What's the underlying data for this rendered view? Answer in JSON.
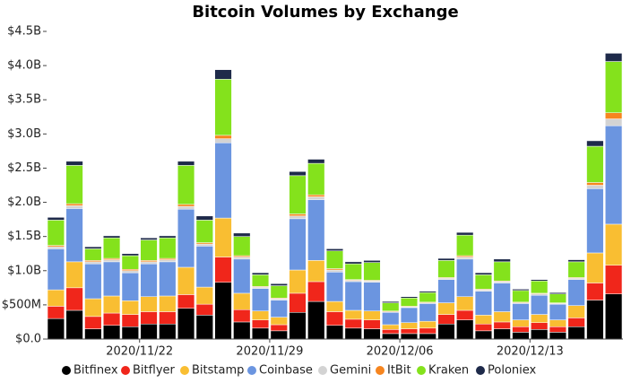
{
  "chart_data": {
    "type": "stacked_bar",
    "title": "Bitcoin Volumes by Exchange",
    "categories": [
      null,
      null,
      null,
      null,
      null,
      "2020/11/22",
      null,
      null,
      null,
      null,
      null,
      null,
      "2020/11/29",
      null,
      null,
      null,
      null,
      null,
      null,
      "2020/12/06",
      null,
      null,
      null,
      null,
      null,
      null,
      "2020/12/13",
      null,
      null,
      null,
      null
    ],
    "ylim": [
      0,
      4.5
    ],
    "yticks": [
      {
        "value": 0,
        "label": "$0.0"
      },
      {
        "value": 0.5,
        "label": "$500M"
      },
      {
        "value": 1,
        "label": "$1.0B"
      },
      {
        "value": 1.5,
        "label": "$1.5B"
      },
      {
        "value": 2,
        "label": "$2.0B"
      },
      {
        "value": 2.5,
        "label": "$2.5B"
      },
      {
        "value": 3,
        "label": "$3.0B"
      },
      {
        "value": 3.5,
        "label": "$3.5B"
      },
      {
        "value": 4,
        "label": "$4.0B"
      },
      {
        "value": 4.5,
        "label": "$4.5B"
      }
    ],
    "legend": "bottom",
    "series": [
      {
        "name": "Bitfinex",
        "color": "#000000",
        "values": [
          0.3,
          0.42,
          0.15,
          0.2,
          0.18,
          0.22,
          0.22,
          0.45,
          0.35,
          0.83,
          0.25,
          0.16,
          0.12,
          0.39,
          0.55,
          0.2,
          0.16,
          0.15,
          0.08,
          0.08,
          0.08,
          0.22,
          0.28,
          0.12,
          0.15,
          0.1,
          0.14,
          0.1,
          0.18,
          0.57,
          0.66
        ]
      },
      {
        "name": "Bitflyer",
        "color": "#f0261b",
        "values": [
          0.18,
          0.33,
          0.18,
          0.18,
          0.18,
          0.18,
          0.18,
          0.2,
          0.16,
          0.37,
          0.18,
          0.12,
          0.09,
          0.28,
          0.29,
          0.2,
          0.13,
          0.13,
          0.06,
          0.07,
          0.08,
          0.14,
          0.14,
          0.1,
          0.1,
          0.08,
          0.1,
          0.08,
          0.13,
          0.25,
          0.42
        ]
      },
      {
        "name": "Bitstamp",
        "color": "#f9be32",
        "values": [
          0.24,
          0.38,
          0.26,
          0.25,
          0.2,
          0.22,
          0.23,
          0.4,
          0.25,
          0.57,
          0.24,
          0.13,
          0.11,
          0.34,
          0.31,
          0.15,
          0.13,
          0.13,
          0.07,
          0.09,
          0.1,
          0.17,
          0.2,
          0.13,
          0.15,
          0.1,
          0.12,
          0.1,
          0.18,
          0.44,
          0.6
        ]
      },
      {
        "name": "Coinbase",
        "color": "#6b95e0",
        "values": [
          0.6,
          0.78,
          0.51,
          0.5,
          0.41,
          0.48,
          0.5,
          0.85,
          0.6,
          1.1,
          0.5,
          0.33,
          0.25,
          0.75,
          0.89,
          0.43,
          0.42,
          0.42,
          0.18,
          0.22,
          0.26,
          0.34,
          0.55,
          0.35,
          0.42,
          0.24,
          0.28,
          0.23,
          0.38,
          0.94,
          1.44
        ]
      },
      {
        "name": "Gemini",
        "color": "#d3d3d3",
        "values": [
          0.03,
          0.04,
          0.03,
          0.03,
          0.03,
          0.03,
          0.03,
          0.04,
          0.03,
          0.06,
          0.03,
          0.02,
          0.02,
          0.04,
          0.04,
          0.03,
          0.02,
          0.02,
          0.01,
          0.01,
          0.01,
          0.02,
          0.03,
          0.02,
          0.02,
          0.01,
          0.02,
          0.01,
          0.02,
          0.05,
          0.1
        ]
      },
      {
        "name": "ItBit",
        "color": "#f6851f",
        "values": [
          0.02,
          0.03,
          0.02,
          0.02,
          0.02,
          0.02,
          0.02,
          0.03,
          0.02,
          0.05,
          0.02,
          0.01,
          0.01,
          0.03,
          0.03,
          0.02,
          0.01,
          0.01,
          0.01,
          0.01,
          0.01,
          0.01,
          0.02,
          0.01,
          0.01,
          0.01,
          0.01,
          0.01,
          0.01,
          0.04,
          0.09
        ]
      },
      {
        "name": "Kraken",
        "color": "#84e21c",
        "values": [
          0.37,
          0.56,
          0.17,
          0.3,
          0.2,
          0.3,
          0.3,
          0.57,
          0.33,
          0.82,
          0.28,
          0.17,
          0.18,
          0.56,
          0.46,
          0.26,
          0.23,
          0.26,
          0.12,
          0.12,
          0.14,
          0.25,
          0.3,
          0.21,
          0.28,
          0.17,
          0.18,
          0.13,
          0.23,
          0.53,
          0.75
        ]
      },
      {
        "name": "Poloniex",
        "color": "#1e2a4a",
        "values": [
          0.04,
          0.06,
          0.03,
          0.03,
          0.03,
          0.03,
          0.03,
          0.06,
          0.06,
          0.14,
          0.05,
          0.03,
          0.03,
          0.06,
          0.06,
          0.03,
          0.03,
          0.03,
          0.02,
          0.02,
          0.02,
          0.03,
          0.04,
          0.03,
          0.04,
          0.02,
          0.02,
          0.02,
          0.03,
          0.08,
          0.12
        ]
      }
    ]
  }
}
